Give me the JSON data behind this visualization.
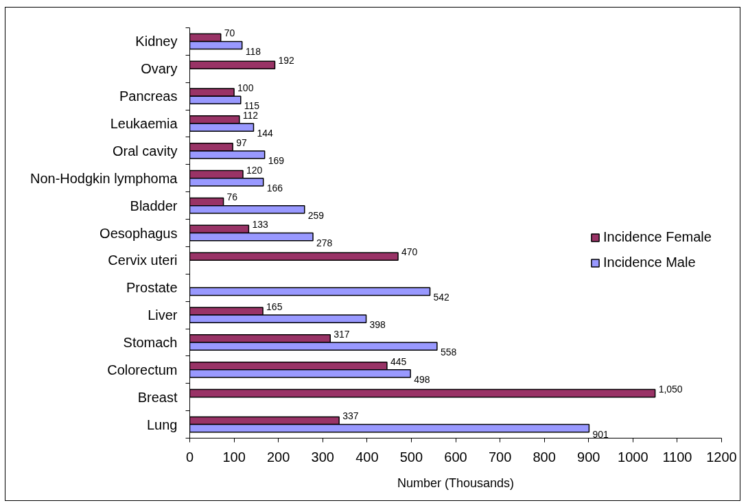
{
  "chart_data": {
    "type": "bar",
    "orientation": "horizontal",
    "categories": [
      "Kidney",
      "Ovary",
      "Pancreas",
      "Leukaemia",
      "Oral cavity",
      "Non-Hodgkin lymphoma",
      "Bladder",
      "Oesophagus",
      "Cervix uteri",
      "Prostate",
      "Liver",
      "Stomach",
      "Colorectum",
      "Breast",
      "Lung"
    ],
    "series": [
      {
        "name": "Incidence Female",
        "color": "#993366",
        "values": [
          70,
          192,
          100,
          112,
          97,
          120,
          76,
          133,
          470,
          null,
          165,
          317,
          445,
          1050,
          337
        ],
        "value_labels": [
          "70",
          "192",
          "100",
          "112",
          "97",
          "120",
          "76",
          "133",
          "470",
          null,
          "165",
          "317",
          "445",
          "1,050",
          "337"
        ]
      },
      {
        "name": "Incidence Male",
        "color": "#9999ff",
        "values": [
          118,
          null,
          115,
          144,
          169,
          166,
          259,
          278,
          null,
          542,
          398,
          558,
          498,
          null,
          901
        ],
        "value_labels": [
          "118",
          null,
          "115",
          "144",
          "169",
          "166",
          "259",
          "278",
          null,
          "542",
          "398",
          "558",
          "498",
          null,
          "901"
        ]
      }
    ],
    "xlabel": "Number (Thousands)",
    "xlim": [
      0,
      1200
    ],
    "xticks": [
      0,
      100,
      200,
      300,
      400,
      500,
      600,
      700,
      800,
      900,
      1000,
      1100,
      1200
    ],
    "legend": "right"
  }
}
